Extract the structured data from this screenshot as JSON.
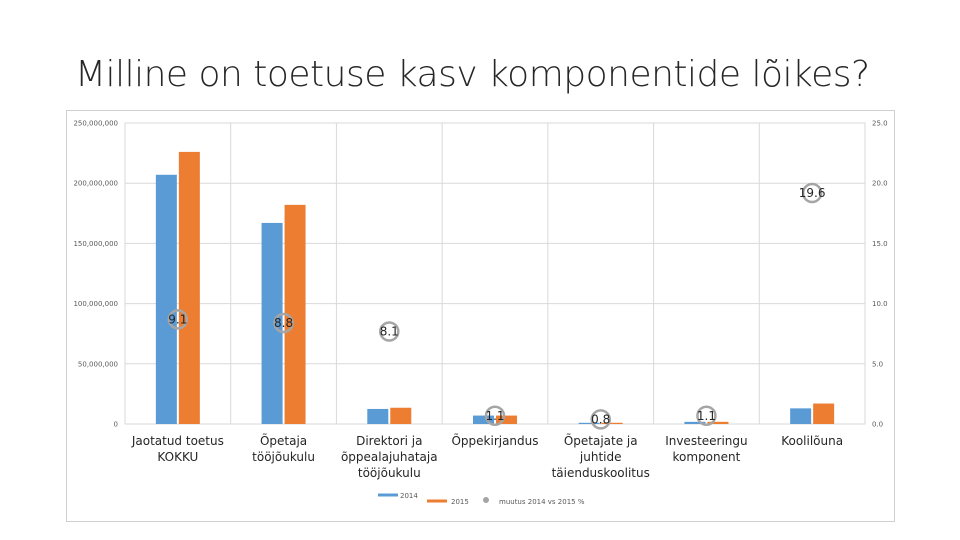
{
  "slide": {
    "title": "Milline on toetuse kasv komponentide lõikes?"
  },
  "colors": {
    "s2014": "#5b9bd5",
    "s2015": "#ed7d31",
    "change": "#a5a5a5",
    "grid": "#d9d9d9"
  },
  "chart_data": {
    "type": "bar",
    "title": "",
    "categories": [
      [
        "Jaotatud toetus",
        "KOKKU"
      ],
      [
        "Õpetaja",
        "tööjõukulu"
      ],
      [
        "Direktori ja",
        "õppealajuhataja",
        "tööjõukulu"
      ],
      [
        "Õppekirjandus"
      ],
      [
        "Õpetajate ja",
        "juhtide",
        "täienduskoolitus"
      ],
      [
        "Investeeringu",
        "komponent"
      ],
      [
        "Koolilõuna"
      ]
    ],
    "series": [
      {
        "name": "2014",
        "axis": "left",
        "values": [
          207000000,
          167000000,
          12500000,
          7000000,
          1000000,
          1800000,
          13000000
        ]
      },
      {
        "name": "2015",
        "axis": "left",
        "values": [
          226000000,
          182000000,
          13500000,
          7000000,
          1000000,
          1800000,
          17000000
        ]
      },
      {
        "name": "muutus 2014 vs 2015 %",
        "axis": "right",
        "values": [
          9.1,
          8.8,
          8.1,
          1.1,
          0.8,
          1.1,
          19.6
        ]
      }
    ],
    "data_labels": [
      "9.1",
      "8.8",
      "8.1",
      "1.1",
      "0.8",
      "1.1",
      "19.6"
    ],
    "y_left": {
      "ylim": [
        0,
        250000000
      ],
      "ticks": [
        "0",
        "50,000,000",
        "100,000,000",
        "150,000,000",
        "200,000,000",
        "250,000,000"
      ]
    },
    "y_right": {
      "ylim": [
        0,
        25
      ],
      "ticks": [
        "0.0",
        "5.0",
        "10.0",
        "15.0",
        "20.0",
        "25.0"
      ]
    },
    "grid": true,
    "legend": {
      "position": "bottom",
      "entries": [
        "2014",
        "2015",
        "muutus 2014 vs 2015 %"
      ]
    }
  }
}
